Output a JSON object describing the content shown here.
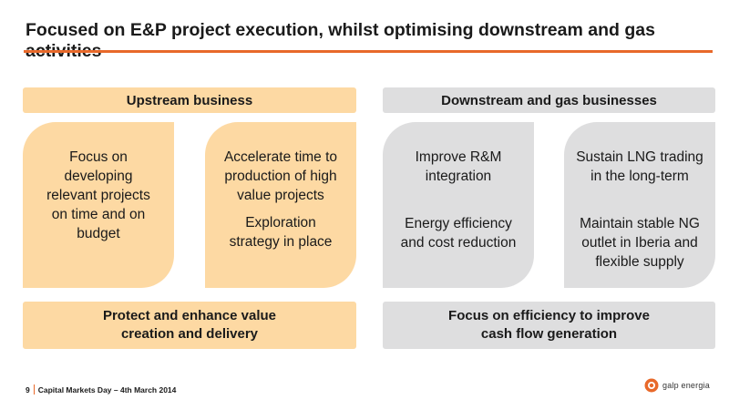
{
  "header": {
    "title": "Focused on E&P project execution, whilst optimising downstream and gas activities"
  },
  "upstream": {
    "heading": "Upstream business",
    "card1": {
      "lines": [
        "Focus on",
        "developing",
        "relevant projects",
        "on time and on",
        "budget"
      ]
    },
    "card2": {
      "block1": [
        "Accelerate time to",
        "production of high",
        "value projects"
      ],
      "block2": [
        "Exploration",
        "strategy in place"
      ]
    },
    "summary": [
      "Protect and enhance value",
      "creation and delivery"
    ]
  },
  "downstream": {
    "heading": "Downstream and gas businesses",
    "card1": {
      "block1": [
        "Improve R&M",
        "integration"
      ],
      "block2": [
        "Energy efficiency",
        "and cost reduction"
      ]
    },
    "card2": {
      "block1": [
        "Sustain LNG trading",
        "in the long-term"
      ],
      "block2": [
        "Maintain stable NG",
        "outlet in Iberia and",
        "flexible supply"
      ]
    },
    "summary": [
      "Focus on efficiency to improve",
      "cash flow generation"
    ]
  },
  "footer": {
    "page_number": "9",
    "event": "Capital Markets Day – 4th March 2014",
    "logo_text": "galp energia"
  },
  "colors": {
    "accent": "#e8692a",
    "upstream_fill": "#fdd9a3",
    "downstream_fill": "#dededf"
  }
}
